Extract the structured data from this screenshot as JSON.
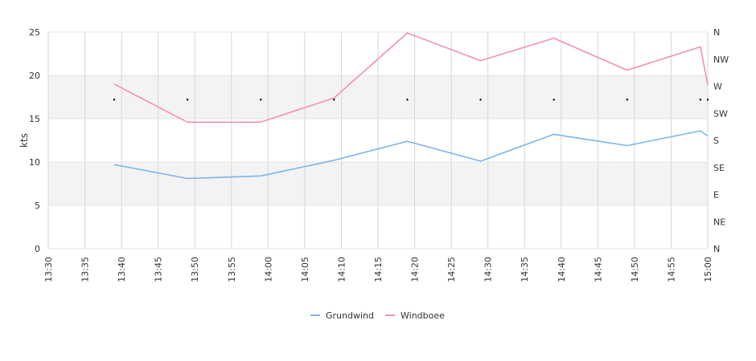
{
  "chart_data": {
    "type": "line",
    "ylabel": "kts",
    "ylim": [
      0,
      25
    ],
    "yticks": [
      0,
      5,
      10,
      15,
      20,
      25
    ],
    "x_categories": [
      "13:30",
      "13:35",
      "13:40",
      "13:45",
      "13:50",
      "13:55",
      "14:00",
      "14:05",
      "14:10",
      "14:15",
      "14:20",
      "14:25",
      "14:30",
      "14:35",
      "14:40",
      "14:45",
      "14:50",
      "14:55",
      "15:00"
    ],
    "right_axis": {
      "labels": [
        "N",
        "NE",
        "E",
        "SE",
        "S",
        "SW",
        "W",
        "NW",
        "N"
      ]
    },
    "grid": true,
    "legend_placement": "bottom-center",
    "series": [
      {
        "name": "Grundwind",
        "color": "#7cb5ec",
        "x": [
          "13:39",
          "13:49",
          "13:59",
          "14:09",
          "14:19",
          "14:29",
          "14:39",
          "14:49",
          "14:59",
          "15:00"
        ],
        "values": [
          9.7,
          8.1,
          8.4,
          10.2,
          12.4,
          10.1,
          13.2,
          11.9,
          13.6,
          13.0
        ]
      },
      {
        "name": "Windboee",
        "color": "#f28fbb",
        "x": [
          "13:39",
          "13:49",
          "13:59",
          "14:09",
          "14:19",
          "14:29",
          "14:39",
          "14:49",
          "14:59",
          "15:00"
        ],
        "values": [
          19.0,
          14.6,
          14.6,
          17.4,
          24.9,
          21.7,
          24.3,
          20.6,
          23.3,
          18.9
        ]
      }
    ],
    "direction_markers": {
      "x": [
        "13:39",
        "13:49",
        "13:59",
        "14:09",
        "14:19",
        "14:29",
        "14:39",
        "14:49",
        "14:59",
        "15:00"
      ],
      "values": [
        17.2,
        17.2,
        17.2,
        17.2,
        17.2,
        17.2,
        17.2,
        17.2,
        17.2,
        17.2
      ]
    }
  }
}
